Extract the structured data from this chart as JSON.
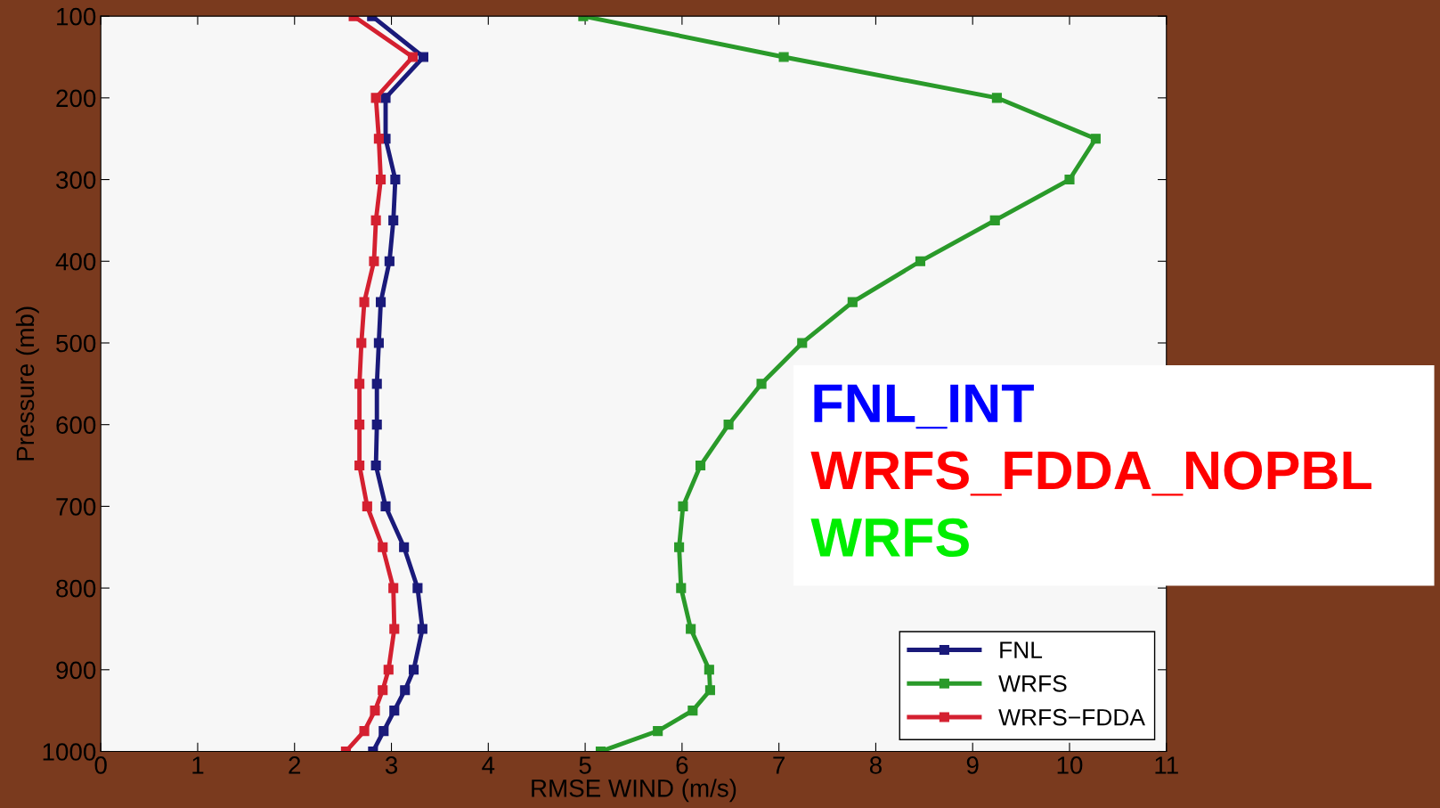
{
  "chart_data": {
    "type": "line",
    "xlabel": "RMSE WIND (m/s)",
    "ylabel": "Pressure (mb)",
    "xlim": [
      0,
      11
    ],
    "xticks": [
      0,
      1,
      2,
      3,
      4,
      5,
      6,
      7,
      8,
      9,
      10,
      11
    ],
    "ylim": [
      1000,
      100
    ],
    "yticks": [
      100,
      200,
      300,
      400,
      500,
      600,
      700,
      800,
      900,
      1000
    ],
    "marker": "square",
    "line_style": "solid",
    "grid": false,
    "legend": "bottom right",
    "series": [
      {
        "name": "FNL",
        "color": "#1a1a7a",
        "x": [
          2.8,
          3.33,
          2.94,
          2.94,
          3.04,
          3.02,
          2.98,
          2.89,
          2.87,
          2.85,
          2.85,
          2.84,
          2.94,
          3.13,
          3.27,
          3.32,
          3.23,
          3.14,
          3.03,
          2.92,
          2.81
        ],
        "values": [
          100,
          150,
          200,
          250,
          300,
          350,
          400,
          450,
          500,
          550,
          600,
          650,
          700,
          750,
          800,
          850,
          900,
          925,
          950,
          975,
          1000
        ]
      },
      {
        "name": "WRFS",
        "color": "#2a9a2a",
        "x": [
          4.98,
          7.05,
          9.25,
          10.27,
          10.0,
          9.23,
          8.46,
          7.76,
          7.24,
          6.82,
          6.48,
          6.19,
          6.01,
          5.97,
          5.99,
          6.09,
          6.28,
          6.29,
          6.11,
          5.75,
          5.16
        ],
        "values": [
          100,
          150,
          200,
          250,
          300,
          350,
          400,
          450,
          500,
          550,
          600,
          650,
          700,
          750,
          800,
          850,
          900,
          925,
          950,
          975,
          1000
        ]
      },
      {
        "name": "WRFS−FDDA",
        "color": "#d42030",
        "x": [
          2.61,
          3.22,
          2.84,
          2.87,
          2.89,
          2.84,
          2.82,
          2.72,
          2.69,
          2.67,
          2.67,
          2.67,
          2.75,
          2.91,
          3.02,
          3.03,
          2.97,
          2.91,
          2.83,
          2.72,
          2.53
        ],
        "values": [
          100,
          150,
          200,
          250,
          300,
          350,
          400,
          450,
          500,
          550,
          600,
          650,
          700,
          750,
          800,
          850,
          900,
          925,
          950,
          975,
          1000
        ]
      }
    ],
    "annotations": [
      "FNL_INT",
      "WRFS_FDDA_NOPBL",
      "WRFS"
    ]
  }
}
